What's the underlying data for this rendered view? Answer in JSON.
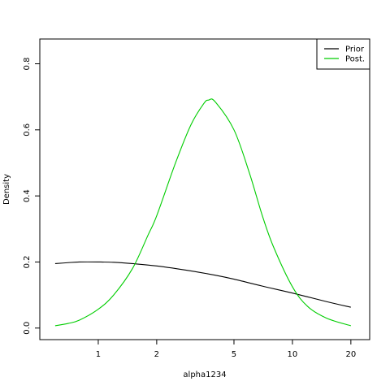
{
  "chart_data": {
    "type": "line",
    "title": "",
    "xlabel": "alpha1234",
    "ylabel": "Density",
    "x_scale": "log",
    "xlim": [
      0.5,
      25
    ],
    "ylim": [
      -0.035,
      0.875
    ],
    "x_ticks": [
      1,
      2,
      5,
      10,
      20
    ],
    "x_tick_labels": [
      "1",
      "2",
      "5",
      "10",
      "20"
    ],
    "y_ticks": [
      0.0,
      0.2,
      0.4,
      0.6,
      0.8
    ],
    "y_tick_labels": [
      "0.0",
      "0.2",
      "0.4",
      "0.6",
      "0.8"
    ],
    "grid": false,
    "legend_position": "top-right",
    "series": [
      {
        "name": "Prior",
        "color": "#000000",
        "x": [
          0.6,
          0.7,
          0.8,
          1.0,
          1.2,
          1.5,
          2.0,
          3.0,
          4.0,
          5.0,
          7.0,
          10.0,
          15.0,
          20.0
        ],
        "y": [
          0.195,
          0.198,
          0.2,
          0.2,
          0.199,
          0.195,
          0.188,
          0.173,
          0.16,
          0.148,
          0.127,
          0.106,
          0.08,
          0.063
        ]
      },
      {
        "name": "Post.",
        "color": "#00CD00",
        "x": [
          0.6,
          0.7,
          0.8,
          1.0,
          1.2,
          1.5,
          1.8,
          2.0,
          2.5,
          3.0,
          3.5,
          3.7,
          4.0,
          5.0,
          6.0,
          7.0,
          8.0,
          10.0,
          12.0,
          15.0,
          20.0
        ],
        "y": [
          0.007,
          0.014,
          0.024,
          0.057,
          0.1,
          0.18,
          0.28,
          0.34,
          0.5,
          0.615,
          0.68,
          0.69,
          0.685,
          0.6,
          0.47,
          0.34,
          0.245,
          0.125,
          0.065,
          0.03,
          0.007
        ]
      }
    ]
  }
}
